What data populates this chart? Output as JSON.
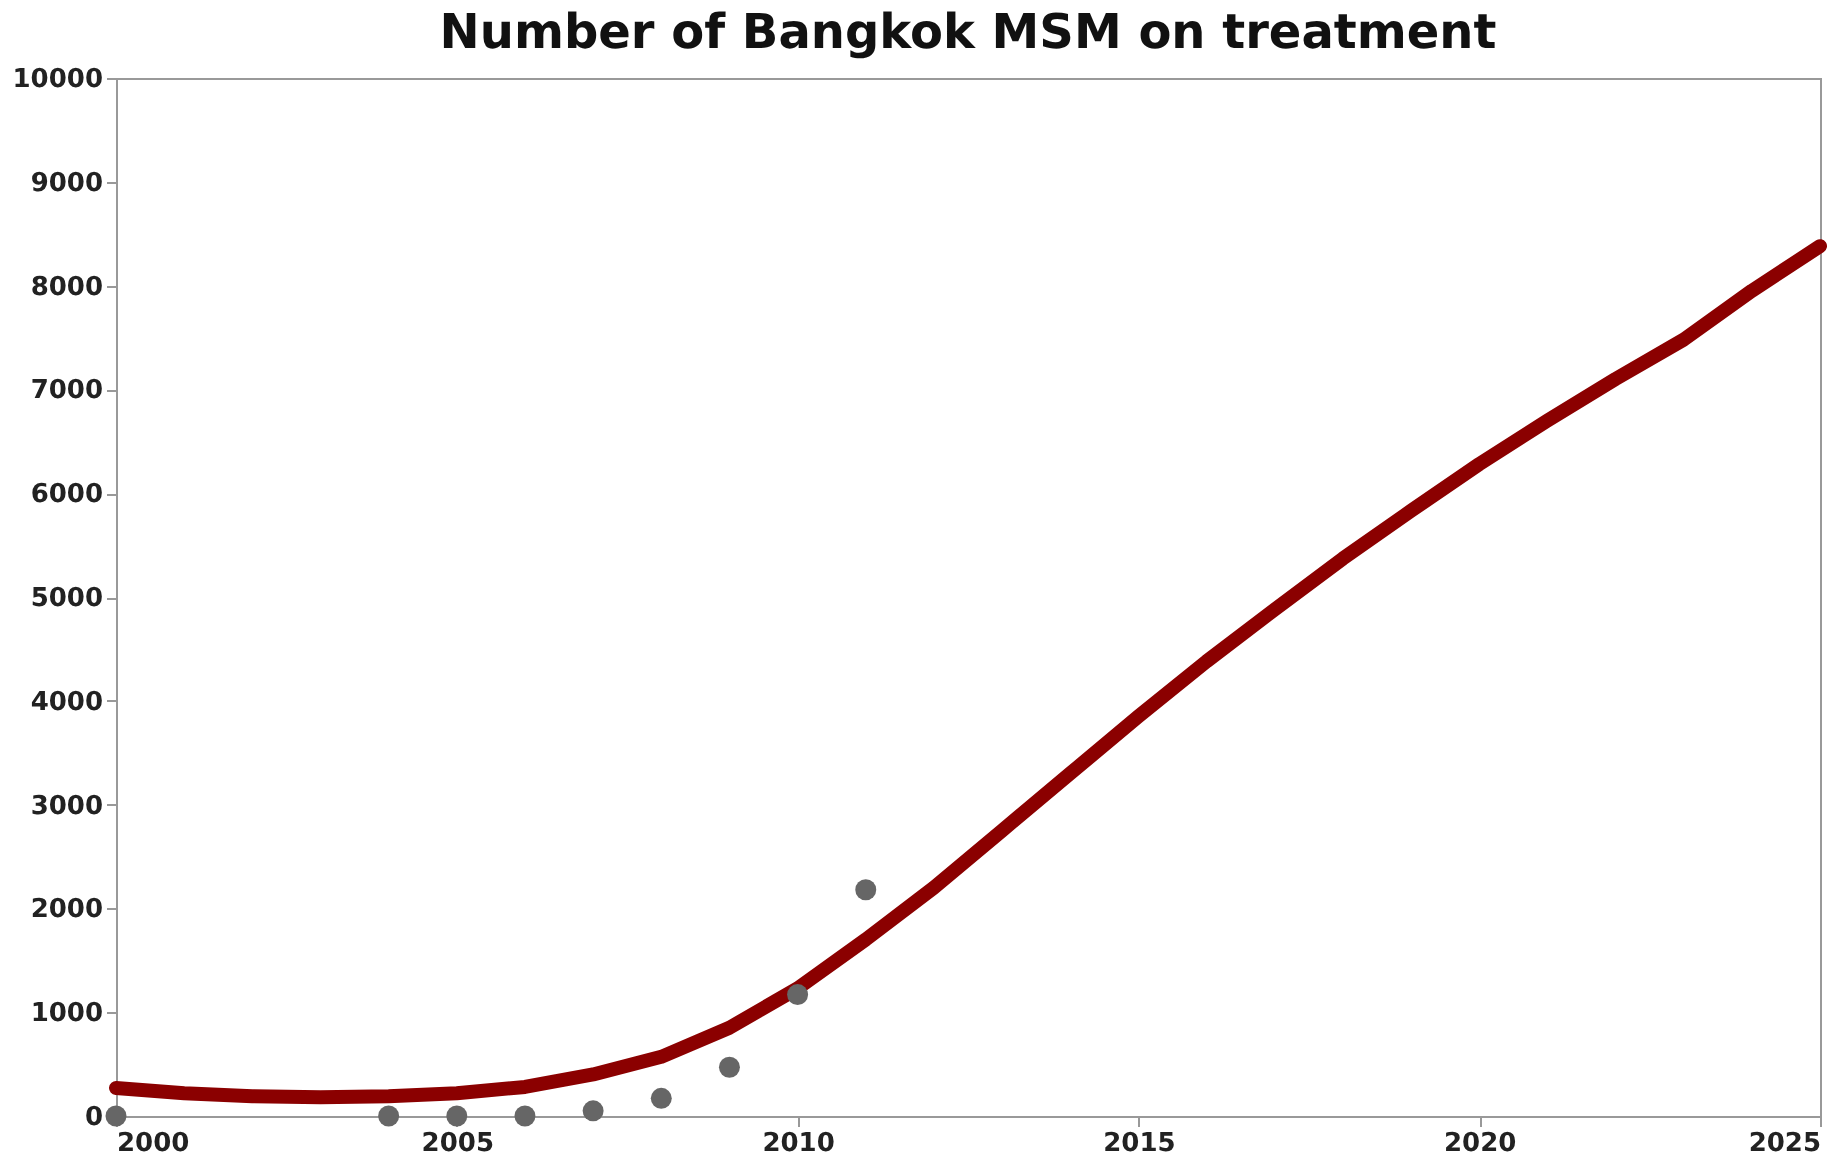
{
  "chart_data": {
    "type": "line",
    "title": "Number of Bangkok MSM on treatment",
    "xlim": [
      2000,
      2025
    ],
    "xticks": [
      2000,
      2005,
      2010,
      2015,
      2020,
      2025
    ],
    "ylim": [
      0,
      10000
    ],
    "yticks": [
      0,
      1000,
      2000,
      3000,
      4000,
      5000,
      6000,
      7000,
      8000,
      9000,
      10000
    ],
    "grid": false,
    "series": [
      {
        "color": "#8b0000",
        "line_style": "solid",
        "x": [
          2000,
          2001,
          2002,
          2003,
          2004,
          2005,
          2006,
          2007,
          2008,
          2009,
          2010,
          2011,
          2012,
          2013,
          2014,
          2015,
          2016,
          2017,
          2018,
          2019,
          2020,
          2021,
          2022,
          2023,
          2024,
          2025
        ],
        "values": [
          270,
          220,
          190,
          180,
          190,
          220,
          280,
          400,
          570,
          850,
          1230,
          1700,
          2200,
          2750,
          3300,
          3850,
          4380,
          4880,
          5370,
          5830,
          6280,
          6700,
          7100,
          7480,
          7950,
          8380
        ]
      },
      {
        "type": "scatter",
        "color": "#666666",
        "marker": "circle",
        "x": [
          2000,
          2004,
          2005,
          2006,
          2007,
          2008,
          2009,
          2010,
          2011
        ],
        "values": [
          0,
          0,
          0,
          0,
          50,
          170,
          470,
          1170,
          2180
        ]
      }
    ]
  }
}
